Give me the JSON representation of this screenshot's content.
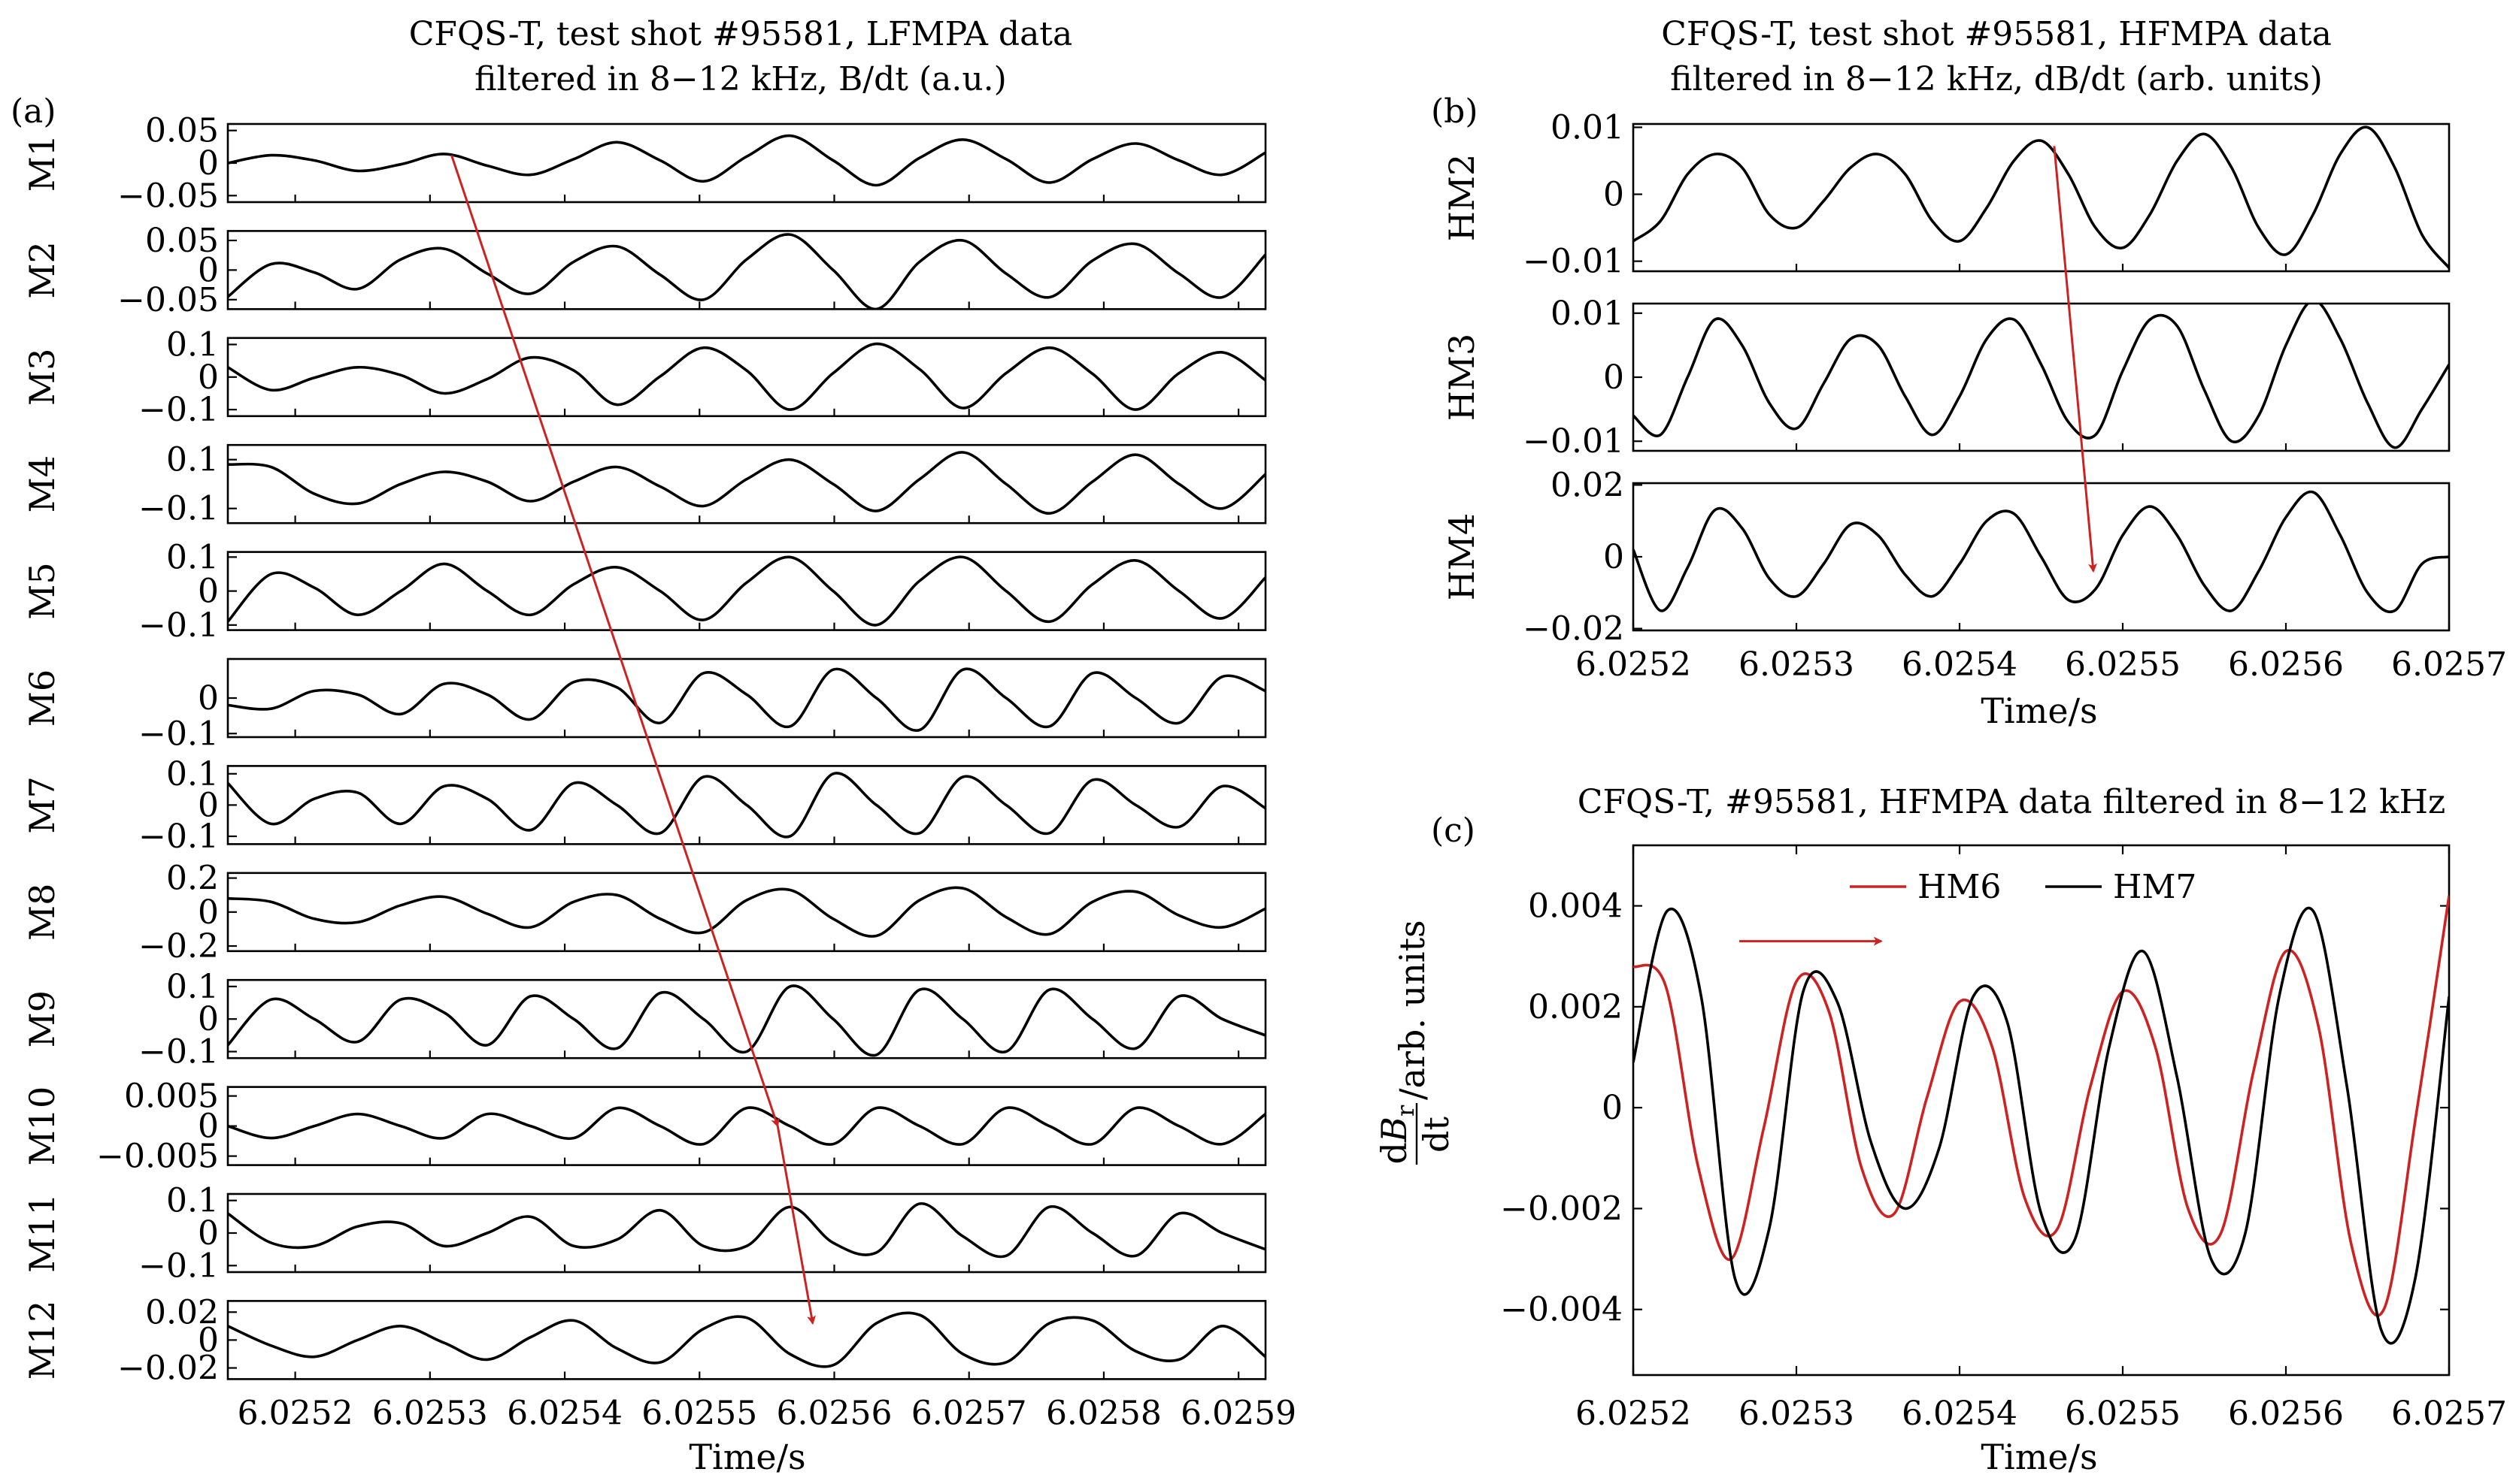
{
  "chart_data": [
    {
      "id": "a",
      "panel_label": "(a)",
      "type": "line",
      "title_lines": [
        "CFQS-T, test shot #95581, LFMPA data",
        "filtered in 8−12 kHz, B/dt (a.u.)"
      ],
      "xlabel": "Time/s",
      "xlim": [
        6.02515,
        6.02592
      ],
      "x_ticks": [
        "6.0252",
        "6.0253",
        "6.0254",
        "6.0255",
        "6.0256",
        "6.0257",
        "6.0258",
        "6.0259"
      ],
      "x_tick_values": [
        6.0252,
        6.0253,
        6.0254,
        6.0255,
        6.0256,
        6.0257,
        6.0258,
        6.0259
      ],
      "line_color": "#000000",
      "subplots": [
        {
          "name": "M1",
          "ylim": [
            -0.06,
            0.06
          ],
          "yticks": [
            0.05,
            0,
            -0.05
          ],
          "ytick_labels": [
            "0.05",
            "0",
            "−0.05"
          ],
          "series": [
            {
              "values": [
                0.0,
                0.012,
                0.004,
                -0.012,
                -0.002,
                0.014,
                -0.004,
                -0.018,
                0.006,
                0.032,
                0.004,
                -0.028,
                0.01,
                0.042,
                0.004,
                -0.034,
                0.008,
                0.036,
                0.006,
                -0.03,
                0.006,
                0.03,
                0.004,
                -0.018,
                0.016
              ]
            }
          ]
        },
        {
          "name": "M2",
          "ylim": [
            -0.066,
            0.066
          ],
          "yticks": [
            0.05,
            0,
            -0.05
          ],
          "ytick_labels": [
            "0.05",
            "0",
            "−0.05"
          ],
          "series": [
            {
              "values": [
                -0.045,
                0.01,
                -0.004,
                -0.032,
                0.018,
                0.036,
                -0.006,
                -0.04,
                0.014,
                0.04,
                -0.008,
                -0.05,
                0.018,
                0.06,
                0.0,
                -0.066,
                0.014,
                0.05,
                -0.006,
                -0.046,
                0.016,
                0.044,
                -0.006,
                -0.046,
                0.026
              ]
            }
          ]
        },
        {
          "name": "M3",
          "ylim": [
            -0.12,
            0.12
          ],
          "yticks": [
            0.1,
            0,
            -0.1
          ],
          "ytick_labels": [
            "0.1",
            "0",
            "−0.1"
          ],
          "series": [
            {
              "values": [
                0.03,
                -0.04,
                -0.002,
                0.03,
                0.006,
                -0.05,
                -0.006,
                0.06,
                0.02,
                -0.085,
                0.002,
                0.09,
                0.02,
                -0.1,
                0.012,
                0.102,
                0.024,
                -0.095,
                0.012,
                0.09,
                0.01,
                -0.1,
                0.012,
                0.076,
                -0.01
              ]
            }
          ]
        },
        {
          "name": "M4",
          "ylim": [
            -0.16,
            0.16
          ],
          "yticks": [
            0.1,
            -0.1
          ],
          "ytick_labels": [
            "0.1",
            "−0.1"
          ],
          "series": [
            {
              "values": [
                0.08,
                0.07,
                -0.04,
                -0.08,
                0.0,
                0.05,
                0.01,
                -0.07,
                0.01,
                0.07,
                -0.01,
                -0.09,
                0.02,
                0.1,
                0.0,
                -0.11,
                0.02,
                0.13,
                0.0,
                -0.12,
                0.01,
                0.12,
                0.0,
                -0.1,
                0.04
              ]
            }
          ]
        },
        {
          "name": "M5",
          "ylim": [
            -0.115,
            0.115
          ],
          "yticks": [
            0.1,
            0,
            -0.1
          ],
          "ytick_labels": [
            "0.1",
            "0",
            "−0.1"
          ],
          "series": [
            {
              "values": [
                -0.09,
                0.05,
                0.01,
                -0.07,
                0.0,
                0.08,
                0.0,
                -0.07,
                0.02,
                0.07,
                0.0,
                -0.085,
                0.025,
                0.1,
                0.0,
                -0.1,
                0.03,
                0.1,
                0.0,
                -0.09,
                0.02,
                0.09,
                0.0,
                -0.08,
                0.04
              ]
            }
          ]
        },
        {
          "name": "M6",
          "ylim": [
            -0.11,
            0.11
          ],
          "yticks": [
            0,
            -0.1
          ],
          "ytick_labels": [
            "0",
            "−0.1"
          ],
          "series": [
            {
              "values": [
                -0.02,
                -0.03,
                0.02,
                0.01,
                -0.045,
                0.04,
                0.01,
                -0.06,
                0.045,
                0.03,
                -0.07,
                0.07,
                0.01,
                -0.08,
                0.08,
                0.0,
                -0.09,
                0.08,
                0.0,
                -0.08,
                0.07,
                0.0,
                -0.07,
                0.06,
                0.02
              ]
            }
          ]
        },
        {
          "name": "M7",
          "ylim": [
            -0.125,
            0.125
          ],
          "yticks": [
            0.1,
            0,
            -0.1
          ],
          "ytick_labels": [
            "0.1",
            "0",
            "−0.1"
          ],
          "series": [
            {
              "values": [
                0.07,
                -0.06,
                0.02,
                0.04,
                -0.06,
                0.06,
                0.02,
                -0.08,
                0.07,
                0.0,
                -0.09,
                0.09,
                0.0,
                -0.1,
                0.1,
                0.0,
                -0.09,
                0.09,
                0.0,
                -0.09,
                0.08,
                0.0,
                -0.07,
                0.06,
                -0.01
              ]
            }
          ]
        },
        {
          "name": "M8",
          "ylim": [
            -0.23,
            0.23
          ],
          "yticks": [
            0.2,
            0,
            -0.2
          ],
          "ytick_labels": [
            "0.2",
            "0",
            "−0.2"
          ],
          "series": [
            {
              "values": [
                0.08,
                0.06,
                -0.04,
                -0.06,
                0.04,
                0.09,
                -0.01,
                -0.09,
                0.06,
                0.1,
                -0.04,
                -0.12,
                0.07,
                0.13,
                -0.04,
                -0.14,
                0.07,
                0.14,
                -0.03,
                -0.13,
                0.06,
                0.12,
                -0.02,
                -0.09,
                0.02
              ]
            }
          ]
        },
        {
          "name": "M9",
          "ylim": [
            -0.12,
            0.12
          ],
          "yticks": [
            0.1,
            0,
            -0.1
          ],
          "ytick_labels": [
            "0.1",
            "0",
            "−0.1"
          ],
          "series": [
            {
              "values": [
                -0.08,
                0.06,
                0.0,
                -0.07,
                0.06,
                0.02,
                -0.08,
                0.07,
                0.0,
                -0.09,
                0.08,
                0.0,
                -0.1,
                0.1,
                0.0,
                -0.11,
                0.09,
                0.0,
                -0.1,
                0.09,
                0.0,
                -0.09,
                0.07,
                0.0,
                -0.05
              ]
            }
          ]
        },
        {
          "name": "M10",
          "ylim": [
            -0.0065,
            0.0065
          ],
          "yticks": [
            0.005,
            0,
            -0.005
          ],
          "ytick_labels": [
            "0.005",
            "0",
            "−0.005"
          ],
          "series": [
            {
              "values": [
                0.0,
                -0.002,
                0.0,
                0.002,
                0.0,
                -0.002,
                0.002,
                0.0,
                -0.002,
                0.003,
                0.0,
                -0.003,
                0.003,
                0.0,
                -0.003,
                0.003,
                0.0,
                -0.003,
                0.003,
                0.0,
                -0.003,
                0.003,
                0.0,
                -0.003,
                0.002
              ]
            }
          ]
        },
        {
          "name": "M11",
          "ylim": [
            -0.12,
            0.12
          ],
          "yticks": [
            0.1,
            0,
            -0.1
          ],
          "ytick_labels": [
            "0.1",
            "0",
            "−0.1"
          ],
          "series": [
            {
              "values": [
                0.06,
                -0.03,
                -0.04,
                0.02,
                0.03,
                -0.04,
                0.0,
                0.05,
                -0.04,
                -0.02,
                0.07,
                -0.04,
                -0.04,
                0.08,
                -0.03,
                -0.06,
                0.09,
                -0.01,
                -0.07,
                0.08,
                0.0,
                -0.07,
                0.06,
                0.0,
                -0.05
              ]
            }
          ]
        },
        {
          "name": "M12",
          "ylim": [
            -0.028,
            0.028
          ],
          "yticks": [
            0.02,
            0,
            -0.02
          ],
          "ytick_labels": [
            "0.02",
            "0",
            "−0.02"
          ],
          "series": [
            {
              "values": [
                0.01,
                -0.004,
                -0.012,
                0.0,
                0.01,
                -0.002,
                -0.014,
                0.002,
                0.014,
                -0.006,
                -0.016,
                0.008,
                0.016,
                -0.01,
                -0.018,
                0.012,
                0.018,
                -0.01,
                -0.016,
                0.012,
                0.014,
                -0.008,
                -0.014,
                0.01,
                -0.012
              ]
            }
          ]
        }
      ],
      "annotation_arrow": {
        "color": "#cc2222",
        "points": [
          [
            6.025316,
            "M1",
            0.012
          ],
          [
            6.025558,
            "M10",
            0.0
          ],
          [
            6.025584,
            "M12",
            0.012
          ]
        ]
      }
    },
    {
      "id": "b",
      "panel_label": "(b)",
      "type": "line",
      "title_lines": [
        "CFQS-T, test shot #95581, HFMPA data",
        "filtered in 8−12 kHz, dB/dt (arb. units)"
      ],
      "xlabel": "Time/s",
      "xlim": [
        6.0252,
        6.0257
      ],
      "x_ticks": [
        "6.0252",
        "6.0253",
        "6.0254",
        "6.0255",
        "6.0256",
        "6.0257"
      ],
      "x_tick_values": [
        6.0252,
        6.0253,
        6.0254,
        6.0255,
        6.0256,
        6.0257
      ],
      "line_color": "#000000",
      "subplots": [
        {
          "name": "HM2",
          "ylim": [
            -0.0115,
            0.0105
          ],
          "yticks": [
            0.01,
            0,
            -0.01
          ],
          "ytick_labels": [
            "0.01",
            "0",
            "−0.01"
          ],
          "series": [
            {
              "values": [
                -0.007,
                -0.004,
                0.003,
                0.006,
                0.004,
                -0.003,
                -0.005,
                -0.001,
                0.004,
                0.006,
                0.003,
                -0.004,
                -0.007,
                -0.002,
                0.005,
                0.008,
                0.003,
                -0.005,
                -0.008,
                -0.003,
                0.005,
                0.009,
                0.004,
                -0.005,
                -0.009,
                -0.003,
                0.006,
                0.01,
                0.004,
                -0.006,
                -0.011
              ]
            }
          ]
        },
        {
          "name": "HM3",
          "ylim": [
            -0.0115,
            0.0115
          ],
          "yticks": [
            0.01,
            0,
            -0.01
          ],
          "ytick_labels": [
            "0.01",
            "0",
            "−0.01"
          ],
          "series": [
            {
              "values": [
                -0.006,
                -0.009,
                0.0,
                0.009,
                0.005,
                -0.004,
                -0.008,
                -0.001,
                0.006,
                0.005,
                -0.003,
                -0.009,
                -0.003,
                0.006,
                0.009,
                0.002,
                -0.007,
                -0.009,
                0.001,
                0.009,
                0.008,
                -0.002,
                -0.01,
                -0.006,
                0.005,
                0.012,
                0.006,
                -0.004,
                -0.011,
                -0.005,
                0.002
              ]
            }
          ]
        },
        {
          "name": "HM4",
          "ylim": [
            -0.0205,
            0.0205
          ],
          "yticks": [
            0.02,
            0,
            -0.02
          ],
          "ytick_labels": [
            "0.02",
            "0",
            "−0.02"
          ],
          "series": [
            {
              "values": [
                0.002,
                -0.015,
                -0.003,
                0.013,
                0.008,
                -0.006,
                -0.011,
                -0.002,
                0.009,
                0.006,
                -0.005,
                -0.011,
                -0.002,
                0.01,
                0.012,
                0.0,
                -0.012,
                -0.009,
                0.006,
                0.014,
                0.006,
                -0.008,
                -0.015,
                -0.004,
                0.011,
                0.018,
                0.006,
                -0.01,
                -0.015,
                -0.002,
                0.0
              ]
            }
          ]
        }
      ],
      "annotation_arrow": {
        "color": "#cc2222",
        "points": [
          [
            6.025458,
            "HM2",
            0.0072
          ],
          [
            6.025482,
            "HM4",
            -0.004
          ]
        ]
      }
    },
    {
      "id": "c",
      "panel_label": "(c)",
      "type": "line",
      "title_lines": [
        "CFQS-T, #95581, HFMPA data filtered in 8−12 kHz"
      ],
      "xlabel": "Time/s",
      "ylabel": "dBᵣ/dt/arb. units",
      "ylabel_parts": {
        "num_prefix": "d",
        "num_var": "B",
        "num_sub": "r",
        "den": "dt",
        "unit": "/arb. units"
      },
      "xlim": [
        6.0252,
        6.0257
      ],
      "ylim": [
        -0.0053,
        0.0052
      ],
      "x_ticks": [
        "6.0252",
        "6.0253",
        "6.0254",
        "6.0255",
        "6.0256",
        "6.0257"
      ],
      "x_tick_values": [
        6.0252,
        6.0253,
        6.0254,
        6.0255,
        6.0256,
        6.0257
      ],
      "y_ticks": [
        "0.004",
        "0.002",
        "0",
        "−0.002",
        "−0.004"
      ],
      "y_tick_values": [
        0.004,
        0.002,
        0,
        -0.002,
        -0.004
      ],
      "legend_position": "top-center",
      "series": [
        {
          "name": "HM6",
          "color": "#cc2222",
          "values": [
            0.0028,
            0.0024,
            -0.0012,
            -0.003,
            -0.0004,
            0.0025,
            0.0019,
            -0.0012,
            -0.0021,
            0.0002,
            0.0021,
            0.0012,
            -0.0018,
            -0.0024,
            0.0004,
            0.0023,
            0.0012,
            -0.002,
            -0.0025,
            0.0007,
            0.0031,
            0.0016,
            -0.0027,
            -0.004,
            -0.0001,
            0.0042
          ]
        },
        {
          "name": "HM7",
          "color": "#000000",
          "values": [
            0.0009,
            0.0039,
            0.0022,
            -0.0034,
            -0.0024,
            0.0023,
            0.0021,
            -0.0007,
            -0.002,
            -0.0008,
            0.0022,
            0.0017,
            -0.0021,
            -0.0026,
            0.0012,
            0.0031,
            0.0006,
            -0.003,
            -0.0025,
            0.0022,
            0.0039,
            0.0004,
            -0.0044,
            -0.0034,
            0.0022
          ]
        }
      ],
      "annotation_arrow": {
        "color": "#cc2222",
        "direction": "right",
        "from": [
          6.025265,
          0.0033
        ],
        "to": [
          6.025352,
          0.0033
        ]
      }
    }
  ]
}
